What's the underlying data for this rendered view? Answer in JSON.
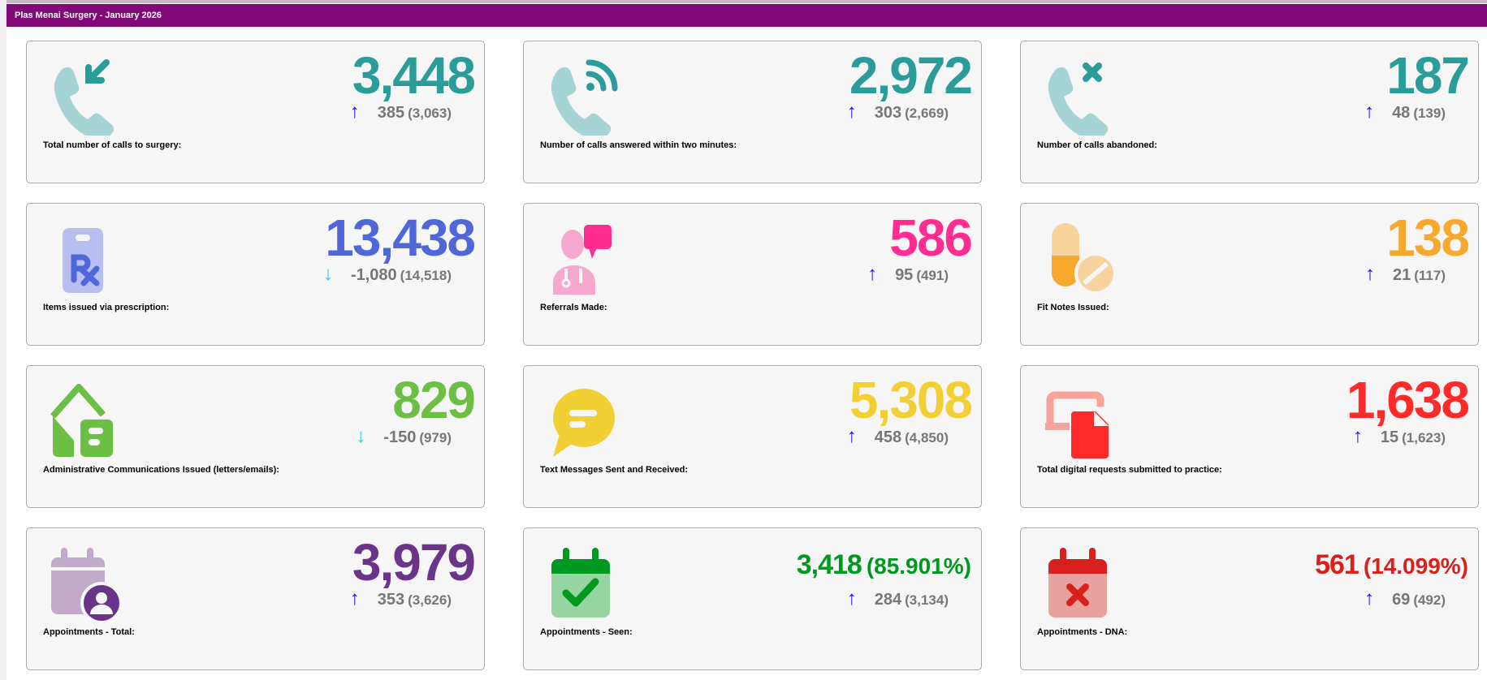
{
  "header": {
    "title": "Plas Menai Surgery - January 2026"
  },
  "colors": {
    "header_bg": "#800877",
    "arrow_up": "#3a00ff",
    "arrow_down": "#2ec8f0",
    "delta_text": "#777777"
  },
  "cards": [
    {
      "label": "Total number of calls to surgery:",
      "value": "3,448",
      "delta": "385",
      "previous": "(3,063)",
      "trend": "up",
      "arrow": "↑",
      "color": "#2a9d9a",
      "icon": "phone-incoming-icon"
    },
    {
      "label": "Number of calls answered within two minutes:",
      "value": "2,972",
      "delta": "303",
      "previous": "(2,669)",
      "trend": "up",
      "arrow": "↑",
      "color": "#2a9d9a",
      "icon": "phone-signal-icon"
    },
    {
      "label": "Number of calls abandoned:",
      "value": "187",
      "delta": "48",
      "previous": "(139)",
      "trend": "up",
      "arrow": "↑",
      "color": "#2a9d9a",
      "icon": "phone-missed-icon"
    },
    {
      "label": "Items issued via prescription:",
      "value": "13,438",
      "delta": "-1,080",
      "previous": "(14,518)",
      "trend": "down",
      "arrow": "↓",
      "color": "#4f67d8",
      "icon": "prescription-icon"
    },
    {
      "label": "Referrals Made:",
      "value": "586",
      "delta": "95",
      "previous": "(491)",
      "trend": "up",
      "arrow": "↑",
      "color": "#ff2d8f",
      "icon": "doctor-chat-icon"
    },
    {
      "label": "Fit Notes Issued:",
      "value": "138",
      "delta": "21",
      "previous": "(117)",
      "trend": "up",
      "arrow": "↑",
      "color": "#f7a92e",
      "icon": "pills-icon"
    },
    {
      "label": "Administrative Communications Issued (letters/emails):",
      "value": "829",
      "delta": "-150",
      "previous": "(979)",
      "trend": "down",
      "arrow": "↓",
      "color": "#6dbe45",
      "icon": "mail-house-icon"
    },
    {
      "label": "Text Messages Sent and Received:",
      "value": "5,308",
      "delta": "458",
      "previous": "(4,850)",
      "trend": "up",
      "arrow": "↑",
      "color": "#f2d035",
      "icon": "chat-bubble-icon"
    },
    {
      "label": "Total digital requests submitted to practice:",
      "value": "1,638",
      "delta": "15",
      "previous": "(1,623)",
      "trend": "up",
      "arrow": "↑",
      "color": "#ff2a2a",
      "icon": "digital-request-icon"
    },
    {
      "label": "Appointments - Total:",
      "value": "3,979",
      "delta": "353",
      "previous": "(3,626)",
      "trend": "up",
      "arrow": "↑",
      "color": "#6a3589",
      "icon": "calendar-user-icon"
    },
    {
      "label": "Appointments - Seen:",
      "value": "3,418",
      "percent": "(85.901%)",
      "delta": "284",
      "previous": "(3,134)",
      "trend": "up",
      "arrow": "↑",
      "color": "#00991f",
      "icon": "calendar-check-icon"
    },
    {
      "label": "Appointments - DNA:",
      "value": "561",
      "percent": "(14.099%)",
      "delta": "69",
      "previous": "(492)",
      "trend": "up",
      "arrow": "↑",
      "color": "#d8201c",
      "icon": "calendar-x-icon"
    }
  ]
}
